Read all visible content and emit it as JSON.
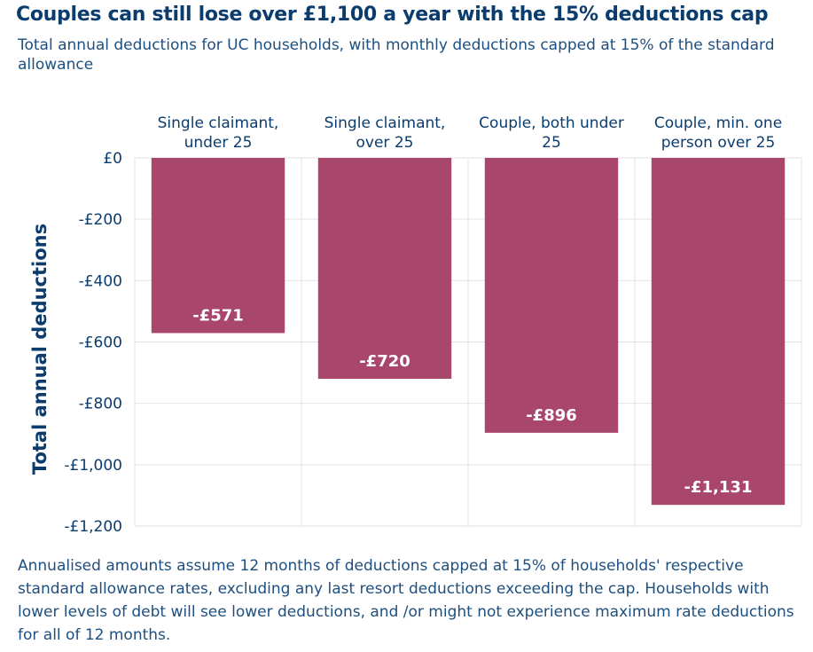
{
  "title": "Couples can still lose over £1,100 a year with the 15% deductions cap",
  "subtitle": "Total annual deductions for UC households, with monthly deductions capped at 15% of the standard allowance",
  "footnote": "Annualised amounts assume 12 months of deductions capped at 15% of households' respective standard allowance rates, excluding any last resort deductions exceeding the cap. Households with lower levels of debt will see lower deductions, and /or might not experience maximum rate deductions for all of 12 months.",
  "colors": {
    "bar": "#a8466c",
    "text": "#0b3c6e",
    "bar_label": "#ffffff",
    "grid": "#e2e2e2"
  },
  "chart_data": {
    "type": "bar",
    "title": "Couples can still lose over £1,100 a year with the 15% deductions cap",
    "xlabel": "",
    "ylabel": "Total annual deductions",
    "ylim": [
      -1200,
      0
    ],
    "yticks": [
      0,
      -200,
      -400,
      -600,
      -800,
      -1000,
      -1200
    ],
    "ytick_labels": [
      "£0",
      "-£200",
      "-£400",
      "-£600",
      "-£800",
      "-£1,000",
      "-£1,200"
    ],
    "categories": [
      [
        "Single claimant,",
        "under 25"
      ],
      [
        "Single claimant,",
        "over 25"
      ],
      [
        "Couple, both under",
        "25"
      ],
      [
        "Couple, min. one",
        "person over 25"
      ]
    ],
    "values": [
      -571,
      -720,
      -896,
      -1131
    ],
    "data_labels": [
      "-£571",
      "-£720",
      "-£896",
      "-£1,131"
    ],
    "grid": true,
    "category_axis_position": "top"
  }
}
